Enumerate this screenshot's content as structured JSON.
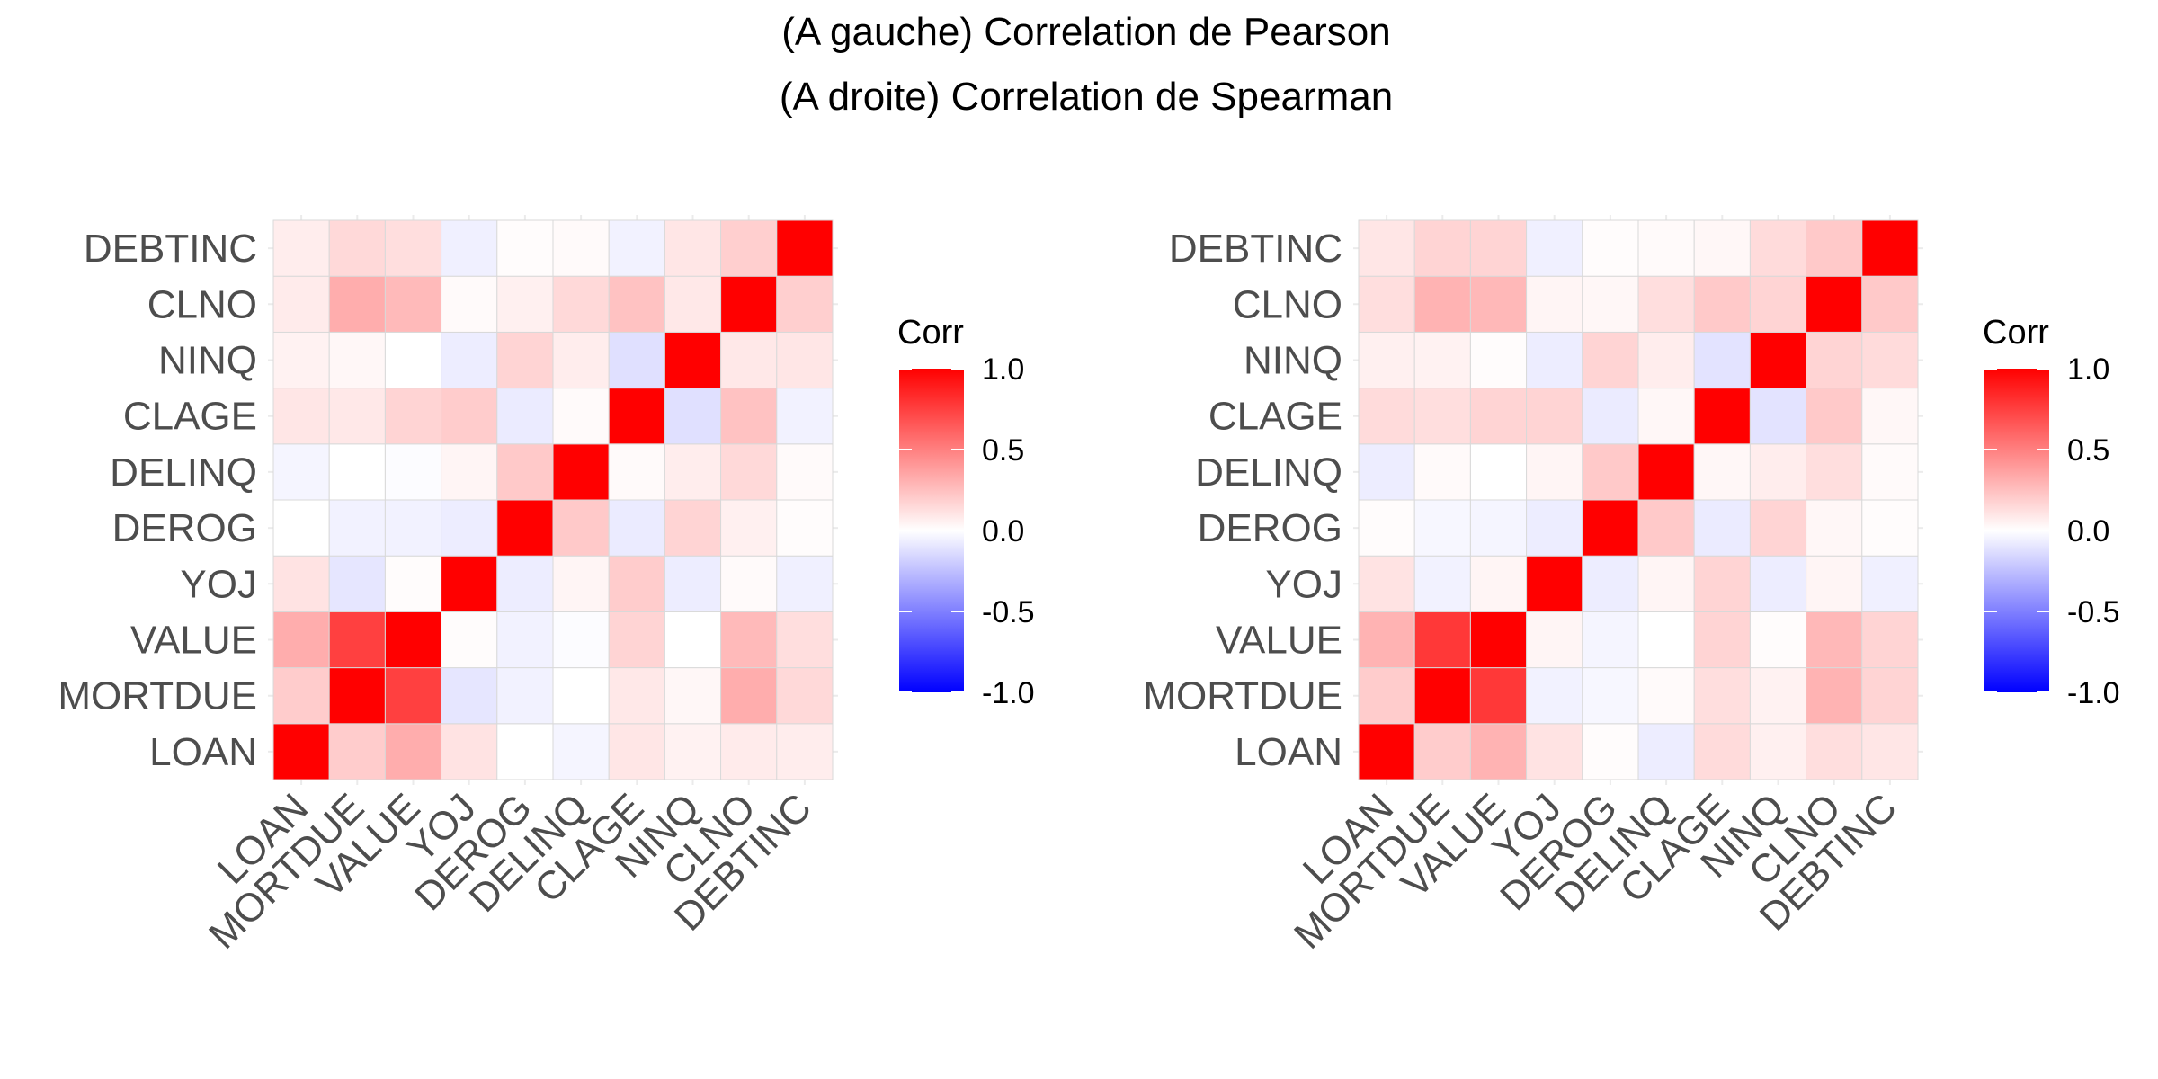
{
  "title": {
    "line1": "(A gauche) Correlation de Pearson",
    "line2": "(A droite) Correlation de Spearman"
  },
  "colors": {
    "low": "#0000ff",
    "mid": "#ffffff",
    "high": "#ff0000",
    "grid": "#ebebeb",
    "cell_border": "#d9d9d9"
  },
  "chart_data": [
    {
      "type": "heatmap",
      "title": "(A gauche) Correlation de Pearson",
      "variables": [
        "LOAN",
        "MORTDUE",
        "VALUE",
        "YOJ",
        "DEROG",
        "DELINQ",
        "CLAGE",
        "NINQ",
        "CLNO",
        "DEBTINC"
      ],
      "matrix": [
        [
          1.0,
          0.2,
          0.32,
          0.11,
          0.0,
          -0.04,
          0.1,
          0.05,
          0.08,
          0.07
        ],
        [
          0.2,
          1.0,
          0.75,
          -0.1,
          -0.05,
          0.0,
          0.09,
          0.03,
          0.32,
          0.15
        ],
        [
          0.32,
          0.75,
          1.0,
          0.01,
          -0.05,
          -0.01,
          0.17,
          0.0,
          0.27,
          0.13
        ],
        [
          0.11,
          -0.1,
          0.01,
          1.0,
          -0.07,
          0.04,
          0.2,
          -0.07,
          0.02,
          -0.06
        ],
        [
          0.0,
          -0.05,
          -0.05,
          -0.07,
          1.0,
          0.21,
          -0.08,
          0.17,
          0.06,
          0.01
        ],
        [
          -0.04,
          0.0,
          -0.01,
          0.04,
          0.21,
          1.0,
          0.02,
          0.07,
          0.15,
          0.02
        ],
        [
          0.1,
          0.09,
          0.17,
          0.2,
          -0.08,
          0.02,
          1.0,
          -0.12,
          0.24,
          -0.05
        ],
        [
          0.05,
          0.03,
          0.0,
          -0.07,
          0.17,
          0.07,
          -0.12,
          1.0,
          0.09,
          0.1
        ],
        [
          0.08,
          0.32,
          0.27,
          0.02,
          0.06,
          0.15,
          0.24,
          0.09,
          1.0,
          0.19
        ],
        [
          0.07,
          0.15,
          0.13,
          -0.06,
          0.01,
          0.02,
          -0.05,
          0.1,
          0.19,
          1.0
        ]
      ],
      "legend": {
        "title": "Corr",
        "ticks": [
          1.0,
          0.5,
          0.0,
          -0.5,
          -1.0
        ],
        "tick_labels": [
          "1.0",
          "0.5",
          "0.0",
          "-0.5",
          "-1.0"
        ],
        "range": [
          -1.0,
          1.0
        ]
      }
    },
    {
      "type": "heatmap",
      "title": "(A droite) Correlation de Spearman",
      "variables": [
        "LOAN",
        "MORTDUE",
        "VALUE",
        "YOJ",
        "DEROG",
        "DELINQ",
        "CLAGE",
        "NINQ",
        "CLNO",
        "DEBTINC"
      ],
      "matrix": [
        [
          1.0,
          0.2,
          0.3,
          0.11,
          0.01,
          -0.07,
          0.14,
          0.06,
          0.13,
          0.1
        ],
        [
          0.2,
          1.0,
          0.78,
          -0.05,
          -0.03,
          0.02,
          0.13,
          0.05,
          0.3,
          0.17
        ],
        [
          0.3,
          0.78,
          1.0,
          0.04,
          -0.04,
          0.0,
          0.17,
          0.01,
          0.28,
          0.17
        ],
        [
          0.11,
          -0.05,
          0.04,
          1.0,
          -0.07,
          0.04,
          0.17,
          -0.07,
          0.04,
          -0.06
        ],
        [
          0.01,
          -0.03,
          -0.04,
          -0.07,
          1.0,
          0.21,
          -0.08,
          0.17,
          0.03,
          0.01
        ],
        [
          -0.07,
          0.02,
          0.0,
          0.04,
          0.21,
          1.0,
          0.03,
          0.07,
          0.13,
          0.02
        ],
        [
          0.14,
          0.13,
          0.17,
          0.17,
          -0.08,
          0.03,
          1.0,
          -0.11,
          0.21,
          0.03
        ],
        [
          0.06,
          0.05,
          0.01,
          -0.07,
          0.17,
          0.07,
          -0.11,
          1.0,
          0.17,
          0.14
        ],
        [
          0.13,
          0.3,
          0.28,
          0.04,
          0.03,
          0.13,
          0.21,
          0.17,
          1.0,
          0.21
        ],
        [
          0.1,
          0.17,
          0.17,
          -0.06,
          0.01,
          0.02,
          0.03,
          0.14,
          0.21,
          1.0
        ]
      ],
      "legend": {
        "title": "Corr",
        "ticks": [
          1.0,
          0.5,
          0.0,
          -0.5,
          -1.0
        ],
        "tick_labels": [
          "1.0",
          "0.5",
          "0.0",
          "-0.5",
          "-1.0"
        ],
        "range": [
          -1.0,
          1.0
        ]
      }
    }
  ]
}
